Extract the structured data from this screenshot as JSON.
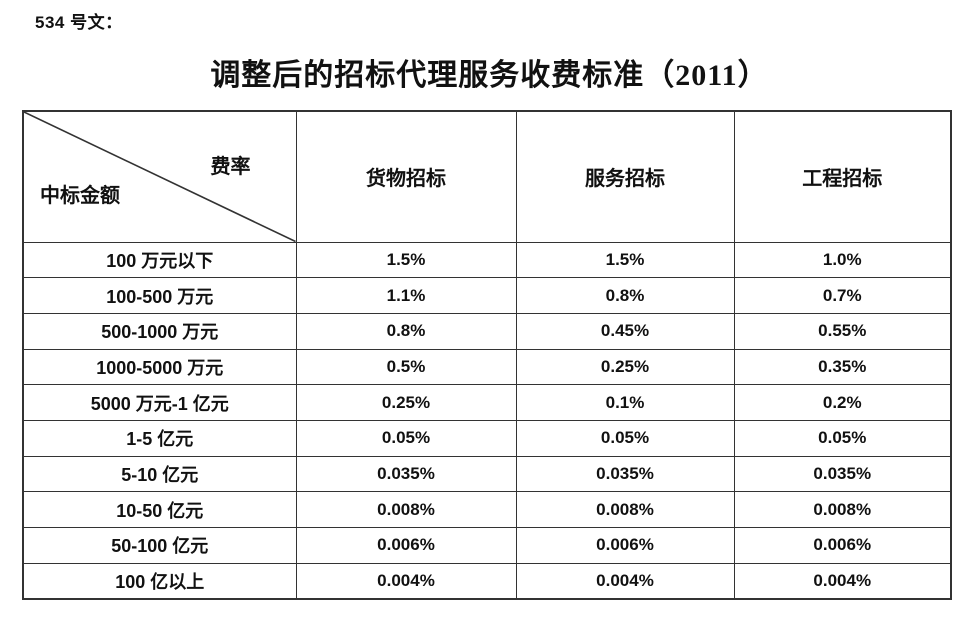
{
  "page": {
    "doc_number": "534 号文：",
    "title": "调整后的招标代理服务收费标准（2011）",
    "background_color": "#ffffff",
    "text_color": "#111111"
  },
  "table": {
    "border_color": "#333333",
    "corner": {
      "top_right": "费率",
      "bottom_left": "中标金额"
    },
    "columns": [
      "货物招标",
      "服务招标",
      "工程招标"
    ],
    "rows": [
      {
        "label": "100 万元以下",
        "values": [
          "1.5%",
          "1.5%",
          "1.0%"
        ]
      },
      {
        "label": "100-500 万元",
        "values": [
          "1.1%",
          "0.8%",
          "0.7%"
        ]
      },
      {
        "label": "500-1000 万元",
        "values": [
          "0.8%",
          "0.45%",
          "0.55%"
        ]
      },
      {
        "label": "1000-5000 万元",
        "values": [
          "0.5%",
          "0.25%",
          "0.35%"
        ]
      },
      {
        "label": "5000 万元-1 亿元",
        "values": [
          "0.25%",
          "0.1%",
          "0.2%"
        ]
      },
      {
        "label": "1-5 亿元",
        "values": [
          "0.05%",
          "0.05%",
          "0.05%"
        ]
      },
      {
        "label": "5-10 亿元",
        "values": [
          "0.035%",
          "0.035%",
          "0.035%"
        ]
      },
      {
        "label": "10-50 亿元",
        "values": [
          "0.008%",
          "0.008%",
          "0.008%"
        ]
      },
      {
        "label": "50-100 亿元",
        "values": [
          "0.006%",
          "0.006%",
          "0.006%"
        ]
      },
      {
        "label": "100 亿以上",
        "values": [
          "0.004%",
          "0.004%",
          "0.004%"
        ]
      }
    ]
  }
}
